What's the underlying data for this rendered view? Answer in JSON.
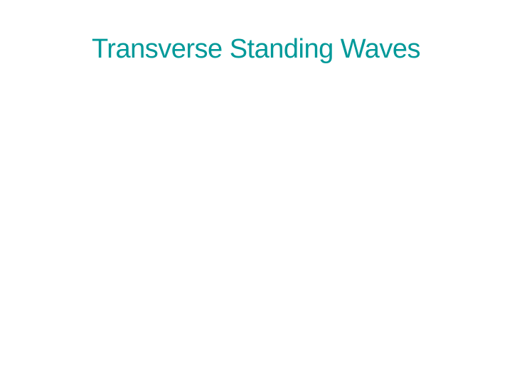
{
  "slide": {
    "title": "Transverse Standing Waves",
    "title_color": "#009999",
    "title_fontsize": 38,
    "title_fontweight": 400,
    "background_color": "#ffffff"
  }
}
